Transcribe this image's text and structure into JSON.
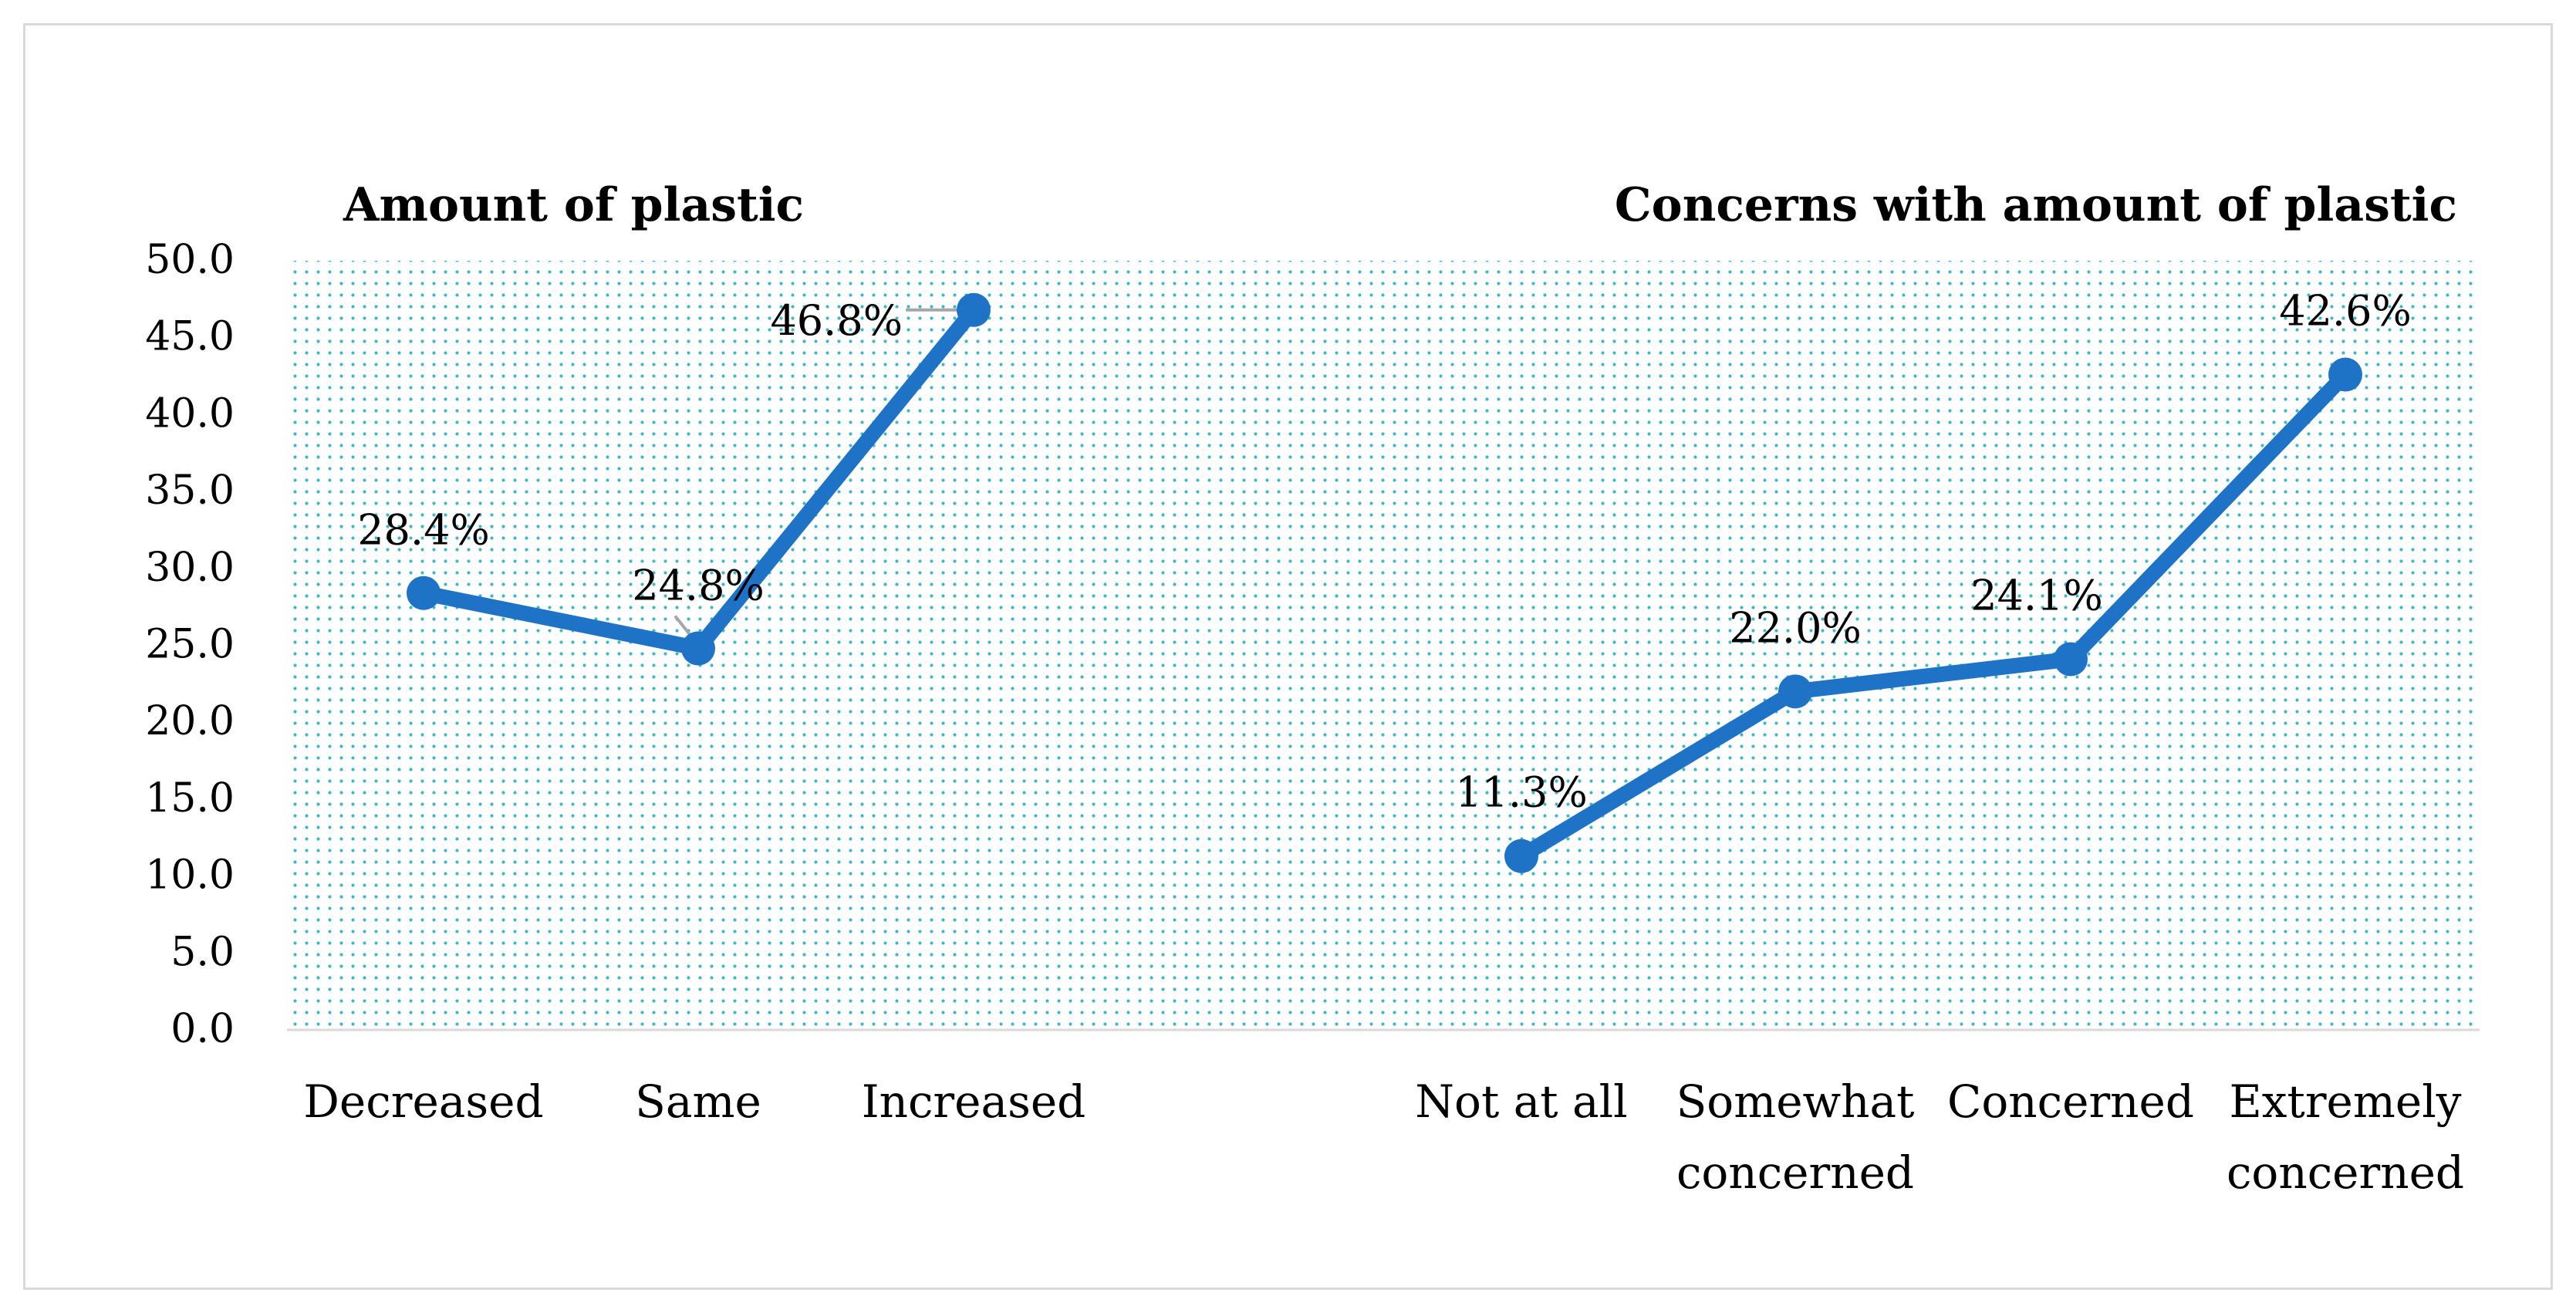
{
  "chart_data": {
    "type": "line",
    "y_ticks": [
      "0.0",
      "5.0",
      "10.0",
      "15.0",
      "20.0",
      "25.0",
      "30.0",
      "35.0",
      "40.0",
      "45.0",
      "50.0"
    ],
    "ylim": [
      0,
      50
    ],
    "grid": "dotted-background",
    "line_color": "#1f73c7",
    "background_dot_color": "#3fb6c9",
    "panels": [
      {
        "title": "Amount of plastic",
        "categories": [
          [
            "Decreased"
          ],
          [
            "Same"
          ],
          [
            "Increased"
          ]
        ],
        "values": [
          28.4,
          24.8,
          46.8
        ],
        "labels": [
          "28.4%",
          "24.8%",
          "46.8%"
        ]
      },
      {
        "title": "Concerns with amount of plastic",
        "categories": [
          [
            "Not at all"
          ],
          [
            "Somewhat",
            "concerned"
          ],
          [
            "Concerned"
          ],
          [
            "Extremely",
            "concerned"
          ]
        ],
        "values": [
          11.3,
          22.0,
          24.1,
          42.6
        ],
        "labels": [
          "11.3%",
          "22.0%",
          "24.1%",
          "42.6%"
        ]
      }
    ]
  }
}
